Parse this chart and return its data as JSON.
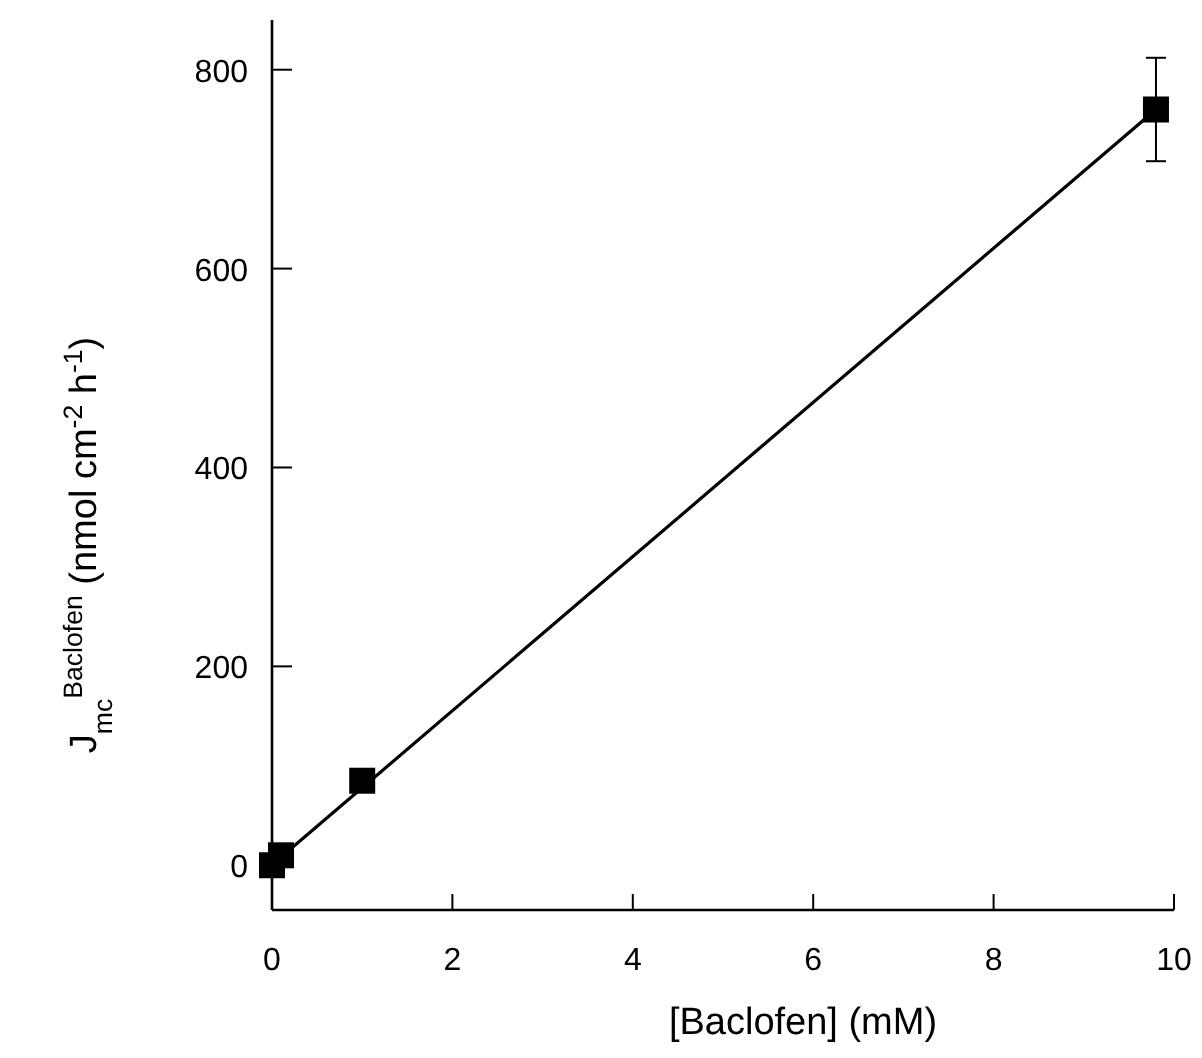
{
  "chart_data": {
    "type": "scatter",
    "xlabel": "[Baclofen]  (mM)",
    "ylabel": "J$_{mc}$$^{Baclofen}$  (nmol cm$^{-2}$ h$^{-1}$)",
    "xlim": [
      0,
      10
    ],
    "ylim": [
      -45,
      850
    ],
    "xticks": [
      0,
      2,
      4,
      6,
      8,
      10
    ],
    "yticks": [
      0,
      200,
      400,
      600,
      800
    ],
    "grid": false,
    "marker": "square",
    "series": [
      {
        "color": "#000000",
        "x": [
          0,
          0.1,
          1,
          9.8
        ],
        "values": [
          0,
          10,
          85,
          760
        ],
        "errors": [
          null,
          null,
          null,
          52
        ]
      },
      {
        "type": "line",
        "color": "#000000",
        "x": [
          0.15,
          9.8
        ],
        "values": [
          12,
          760
        ],
        "marker": "none",
        "line_style": "solid"
      }
    ]
  }
}
